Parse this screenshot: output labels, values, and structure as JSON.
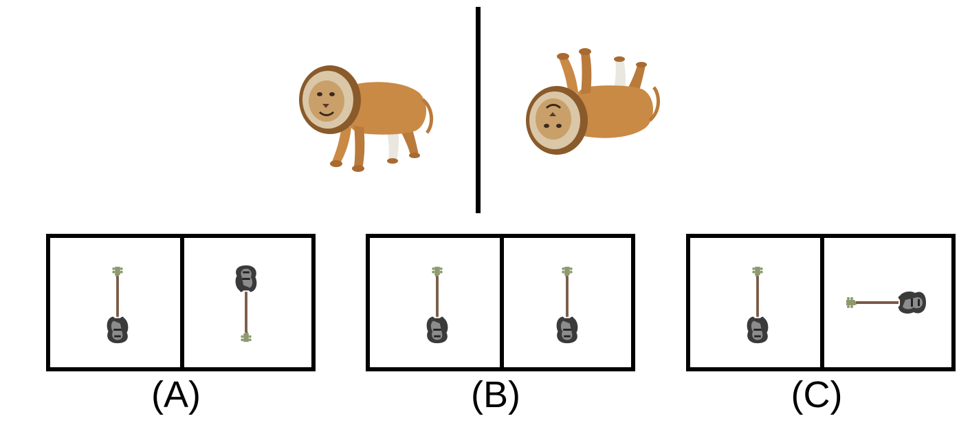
{
  "labels": {
    "a": "(A)",
    "b": "(B)",
    "c": "(C)"
  },
  "icons": {
    "reference_left": "lion-upright-icon",
    "reference_right": "lion-rotated-icon",
    "option_item": "bass-guitar-icon"
  },
  "colors": {
    "lion_fur": "#c98a45",
    "lion_mane": "#8a5a2b",
    "guitar_body": "#3a3a3a",
    "guitar_pickguard": "#8c8c8c",
    "guitar_headstock": "#8c9a6e",
    "guitar_neck": "#7a5a45"
  }
}
